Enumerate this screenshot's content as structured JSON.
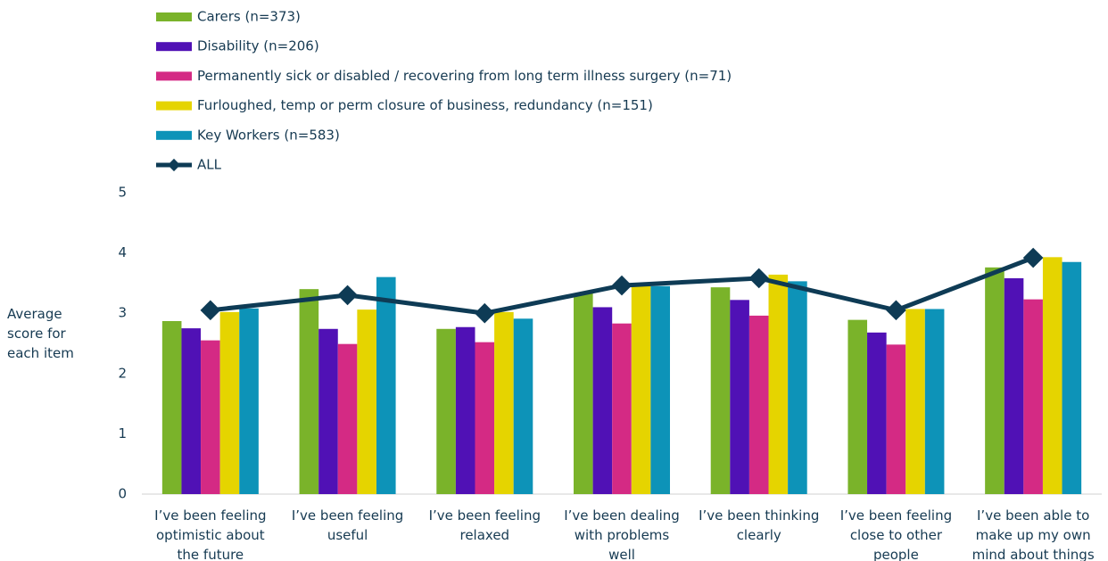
{
  "chart_data": {
    "type": "bar",
    "y_label": [
      "Average",
      "score for",
      "each item"
    ],
    "categories": [
      [
        "I’ve been feeling",
        "optimistic about",
        "the future"
      ],
      [
        "I’ve been feeling",
        "useful"
      ],
      [
        "I’ve been feeling",
        "relaxed"
      ],
      [
        "I’ve been dealing",
        "with problems",
        "well"
      ],
      [
        "I’ve been thinking",
        "clearly"
      ],
      [
        "I’ve been feeling",
        "close to other",
        "people"
      ],
      [
        "I’ve been able to",
        "make up my own",
        "mind about things"
      ]
    ],
    "series": [
      {
        "name": "Carers (n=373)",
        "color": "#7ab32a",
        "values": [
          2.87,
          3.4,
          2.74,
          3.33,
          3.43,
          2.89,
          3.76
        ]
      },
      {
        "name": "Disability (n=206)",
        "color": "#5011b5",
        "values": [
          2.75,
          2.74,
          2.77,
          3.1,
          3.22,
          2.68,
          3.58
        ]
      },
      {
        "name": "Permanently sick or disabled / recovering from long term illness surgery (n=71)",
        "color": "#d42a84",
        "values": [
          2.55,
          2.49,
          2.52,
          2.83,
          2.96,
          2.48,
          3.23
        ]
      },
      {
        "name": "Furloughed, temp or perm closure of business, redundancy (n=151)",
        "color": "#e5d400",
        "values": [
          3.02,
          3.06,
          3.02,
          3.45,
          3.64,
          3.07,
          3.93
        ]
      },
      {
        "name": "Key Workers (n=583)",
        "color": "#0d93b8",
        "values": [
          3.08,
          3.6,
          2.91,
          3.45,
          3.53,
          3.07,
          3.85
        ]
      },
      {
        "name": "ALL",
        "type": "line",
        "color": "#0e3b55",
        "values": [
          3.05,
          3.3,
          3.0,
          3.46,
          3.58,
          3.05,
          3.92
        ]
      }
    ],
    "ylim": [
      0,
      5
    ],
    "yticks": [
      0,
      1,
      2,
      3,
      4,
      5
    ],
    "grid": false,
    "legend": "top-left"
  }
}
